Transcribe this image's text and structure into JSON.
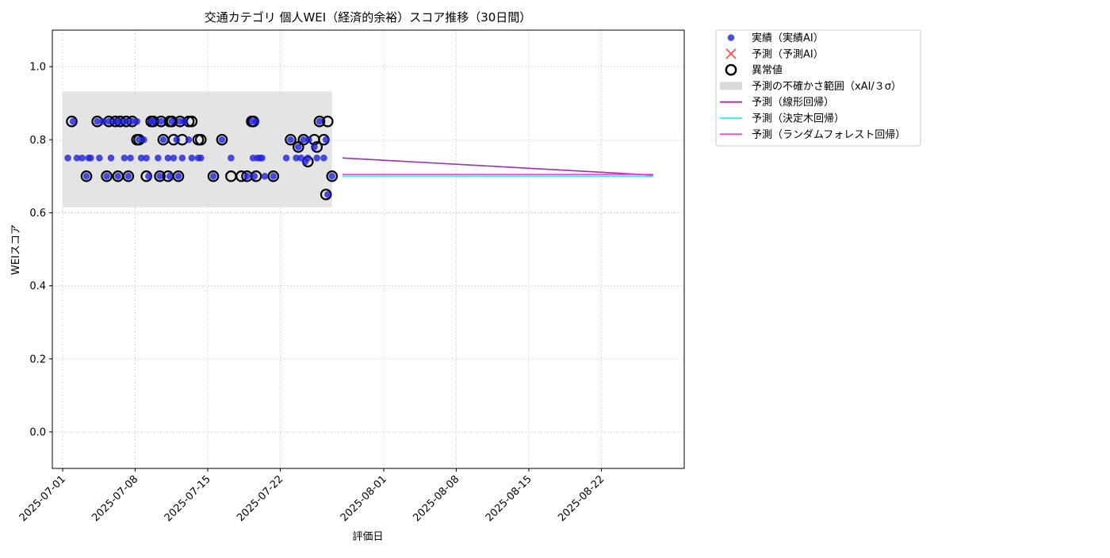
{
  "chart_data": {
    "type": "scatter",
    "title": "交通カテゴリ 個人WEI（経済的余裕）スコア推移（30日間）",
    "xlabel": "評価日",
    "ylabel": "WEIスコア",
    "xlim": [
      "2025-06-30",
      "2025-08-30"
    ],
    "ylim": [
      -0.1,
      1.1
    ],
    "yticks": [
      0.0,
      0.2,
      0.4,
      0.6,
      0.8,
      1.0
    ],
    "ytick_labels": [
      "0.0",
      "0.2",
      "0.4",
      "0.6",
      "0.8",
      "1.0"
    ],
    "xticks": [
      "2025-07-01",
      "2025-07-08",
      "2025-07-15",
      "2025-07-22",
      "2025-08-01",
      "2025-08-08",
      "2025-08-15",
      "2025-08-22"
    ],
    "xtick_labels": [
      "2025-07-01",
      "2025-07-08",
      "2025-07-15",
      "2025-07-22",
      "2025-08-01",
      "2025-08-08",
      "2025-08-15",
      "2025-08-22"
    ],
    "grid": true,
    "legend_position": "outside-top-right",
    "legend": [
      {
        "label": "実績（実績AI）",
        "kind": "dot",
        "color": "#1f1fe0"
      },
      {
        "label": "予測（予測AI）",
        "kind": "cross",
        "color": "#ff3333"
      },
      {
        "label": "異常値",
        "kind": "ring",
        "color": "#000000"
      },
      {
        "label": "予測の不確かさ範囲（xAI/３σ）",
        "kind": "band",
        "color": "#d9d9d9"
      },
      {
        "label": "予測（線形回帰）",
        "kind": "line",
        "color": "#9b30a8"
      },
      {
        "label": "予測（決定木回帰）",
        "kind": "line",
        "color": "#33f0f0"
      },
      {
        "label": "予測（ランダムフォレスト回帰）",
        "kind": "line",
        "color": "#ff33ff"
      }
    ],
    "uncertainty_band": {
      "x_start": "2025-07-01",
      "x_end": "2025-07-27",
      "y_low": 0.615,
      "y_high": 0.932
    },
    "series": [
      {
        "name": "実績（実績AI）",
        "color": "#1f1fe0",
        "x": [
          "2025-07-01 12:00",
          "2025-07-02 00:00",
          "2025-07-02 09:00",
          "2025-07-02 21:00",
          "2025-07-03 07:00",
          "2025-07-03 12:00",
          "2025-07-03 17:00",
          "2025-07-04 08:00",
          "2025-07-04 13:00",
          "2025-07-04 22:00",
          "2025-07-05 06:00",
          "2025-07-05 11:00",
          "2025-07-05 16:00",
          "2025-07-06 02:00",
          "2025-07-06 08:00",
          "2025-07-06 13:00",
          "2025-07-06 23:00",
          "2025-07-07 03:00",
          "2025-07-07 08:00",
          "2025-07-07 13:00",
          "2025-07-07 17:00",
          "2025-07-08 04:00",
          "2025-07-08 09:00",
          "2025-07-08 14:00",
          "2025-07-08 20:00",
          "2025-07-09 02:00",
          "2025-07-09 07:00",
          "2025-07-09 13:00",
          "2025-07-09 18:00",
          "2025-07-10 05:00",
          "2025-07-10 09:00",
          "2025-07-10 12:00",
          "2025-07-10 17:00",
          "2025-07-11 04:00",
          "2025-07-11 08:00",
          "2025-07-11 13:00",
          "2025-07-11 17:00",
          "2025-07-12 00:00",
          "2025-07-12 04:00",
          "2025-07-12 08:00",
          "2025-07-12 13:00",
          "2025-07-12 18:00",
          "2025-07-13 04:00",
          "2025-07-13 11:00",
          "2025-07-14 02:00",
          "2025-07-14 08:00",
          "2025-07-15 13:00",
          "2025-07-16 09:00",
          "2025-07-17 06:00",
          "2025-07-18 19:00",
          "2025-07-19 06:00",
          "2025-07-19 09:00",
          "2025-07-19 12:00",
          "2025-07-19 16:00",
          "2025-07-19 19:00",
          "2025-07-20 01:00",
          "2025-07-20 06:00",
          "2025-07-20 12:00",
          "2025-07-21 08:00",
          "2025-07-22 14:00",
          "2025-07-23 00:00",
          "2025-07-23 13:00",
          "2025-07-23 18:00",
          "2025-07-24 00:00",
          "2025-07-24 06:00",
          "2025-07-24 10:00",
          "2025-07-24 16:00",
          "2025-07-24 18:00",
          "2025-07-25 07:00",
          "2025-07-25 13:00",
          "2025-07-25 19:00",
          "2025-07-26 05:00",
          "2025-07-26 10:00",
          "2025-07-26 14:00",
          "2025-07-27 00:00"
        ],
        "y": [
          0.75,
          0.85,
          0.75,
          0.75,
          0.7,
          0.75,
          0.75,
          0.85,
          0.75,
          0.85,
          0.7,
          0.85,
          0.75,
          0.85,
          0.7,
          0.85,
          0.75,
          0.85,
          0.7,
          0.75,
          0.85,
          0.85,
          0.8,
          0.75,
          0.8,
          0.75,
          0.7,
          0.85,
          0.85,
          0.75,
          0.7,
          0.85,
          0.8,
          0.75,
          0.7,
          0.85,
          0.75,
          0.8,
          0.7,
          0.85,
          0.75,
          0.85,
          0.8,
          0.75,
          0.75,
          0.75,
          0.7,
          0.8,
          0.75,
          0.7,
          0.85,
          0.75,
          0.7,
          0.85,
          0.75,
          0.75,
          0.75,
          0.7,
          0.7,
          0.75,
          0.8,
          0.75,
          0.78,
          0.75,
          0.8,
          0.74,
          0.75,
          0.8,
          0.78,
          0.75,
          0.85,
          0.75,
          0.8,
          0.65,
          0.7
        ]
      },
      {
        "name": "異常値",
        "color": "#000000",
        "x": [
          "2025-07-01 21:00",
          "2025-07-03 07:00",
          "2025-07-04 08:00",
          "2025-07-05 06:00",
          "2025-07-05 11:00",
          "2025-07-06 02:00",
          "2025-07-06 08:00",
          "2025-07-06 13:00",
          "2025-07-07 03:00",
          "2025-07-07 08:00",
          "2025-07-07 17:00",
          "2025-07-08 04:00",
          "2025-07-08 09:00",
          "2025-07-09 02:00",
          "2025-07-09 13:00",
          "2025-07-09 18:00",
          "2025-07-10 09:00",
          "2025-07-10 12:00",
          "2025-07-10 17:00",
          "2025-07-11 04:00",
          "2025-07-11 08:00",
          "2025-07-11 13:00",
          "2025-07-11 17:00",
          "2025-07-12 04:00",
          "2025-07-12 08:00",
          "2025-07-12 13:00",
          "2025-07-13 04:00",
          "2025-07-13 11:00",
          "2025-07-14 02:00",
          "2025-07-14 08:00",
          "2025-07-15 13:00",
          "2025-07-16 09:00",
          "2025-07-17 06:00",
          "2025-07-18 06:00",
          "2025-07-18 19:00",
          "2025-07-19 06:00",
          "2025-07-19 10:00",
          "2025-07-19 16:00",
          "2025-07-21 08:00",
          "2025-07-23 00:00",
          "2025-07-23 18:00",
          "2025-07-24 06:00",
          "2025-07-24 16:00",
          "2025-07-25 07:00",
          "2025-07-25 13:00",
          "2025-07-25 19:00",
          "2025-07-26 05:00",
          "2025-07-26 10:00",
          "2025-07-26 14:00",
          "2025-07-27 00:00"
        ],
        "y": [
          0.85,
          0.7,
          0.85,
          0.7,
          0.85,
          0.85,
          0.7,
          0.85,
          0.85,
          0.7,
          0.85,
          0.8,
          0.8,
          0.7,
          0.85,
          0.85,
          0.7,
          0.85,
          0.8,
          0.7,
          0.85,
          0.85,
          0.8,
          0.7,
          0.85,
          0.8,
          0.85,
          0.85,
          0.8,
          0.8,
          0.7,
          0.8,
          0.7,
          0.7,
          0.7,
          0.85,
          0.85,
          0.7,
          0.7,
          0.8,
          0.78,
          0.8,
          0.74,
          0.8,
          0.78,
          0.85,
          0.8,
          0.65,
          0.85,
          0.7
        ]
      },
      {
        "name": "予測（線形回帰）",
        "color": "#9b30a8",
        "x": [
          "2025-07-28",
          "2025-08-27"
        ],
        "y": [
          0.75,
          0.703
        ]
      },
      {
        "name": "予測（決定木回帰）",
        "color": "#33f0f0",
        "x": [
          "2025-07-28",
          "2025-08-27"
        ],
        "y": [
          0.7,
          0.7
        ]
      },
      {
        "name": "予測（ランダムフォレスト回帰）",
        "color": "#ff33ff",
        "x": [
          "2025-07-28",
          "2025-08-27"
        ],
        "y": [
          0.705,
          0.705
        ]
      }
    ]
  }
}
